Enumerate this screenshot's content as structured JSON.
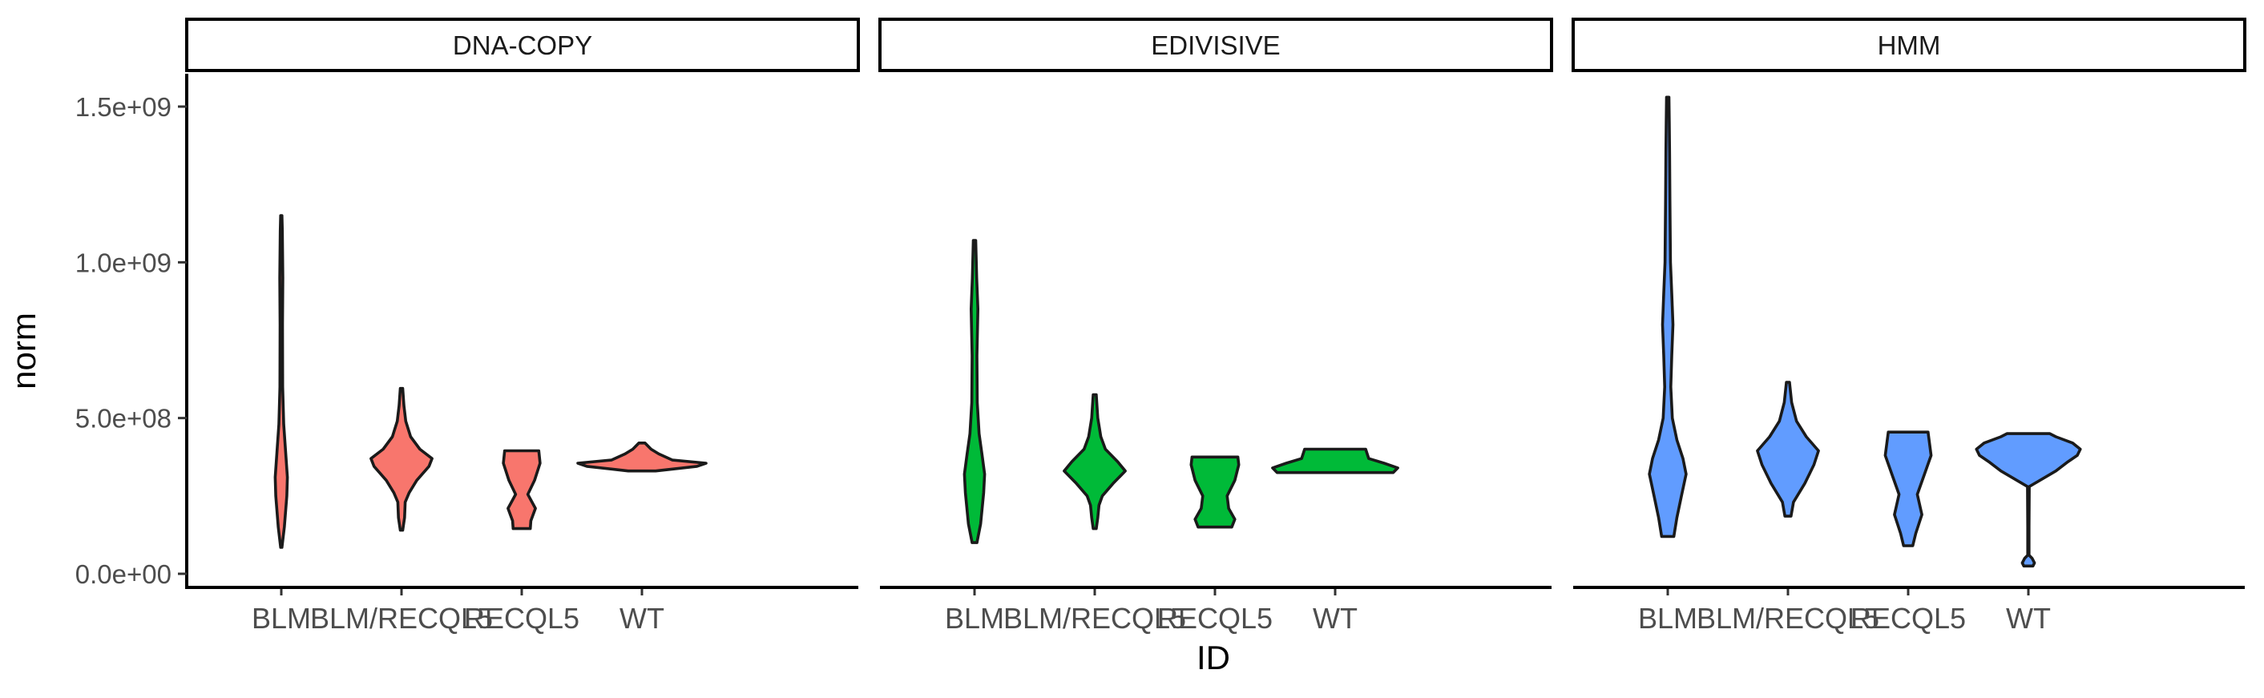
{
  "chart_data": {
    "type": "violin",
    "facets": [
      "DNA-COPY",
      "EDIVISIVE",
      "HMM"
    ],
    "categories": [
      "BLM",
      "BLM/RECQL5",
      "RECQL5",
      "WT"
    ],
    "xlabel": "ID",
    "ylabel": "norm",
    "ylim": [
      -50000000,
      1580000000
    ],
    "yticks": [
      0,
      500000000,
      1000000000,
      1500000000
    ],
    "ytick_labels": [
      "0.0e+00",
      "5.0e+08",
      "1.0e+09",
      "1.5e+09"
    ],
    "facet_colors": {
      "DNA-COPY": "#F8766D",
      "EDIVISIVE": "#00BA38",
      "HMM": "#619CFF"
    },
    "grid": false,
    "legend": "none",
    "violins": {
      "DNA-COPY": {
        "BLM": {
          "min": 85000000,
          "max": 1150000000,
          "profile": [
            [
              85000000,
              0.02
            ],
            [
              150000000,
              0.1
            ],
            [
              250000000,
              0.18
            ],
            [
              310000000,
              0.2
            ],
            [
              380000000,
              0.15
            ],
            [
              480000000,
              0.08
            ],
            [
              600000000,
              0.045
            ],
            [
              800000000,
              0.04
            ],
            [
              950000000,
              0.05
            ],
            [
              1100000000,
              0.035
            ],
            [
              1150000000,
              0.02
            ]
          ]
        },
        "BLM/RECQL5": {
          "min": 140000000,
          "max": 595000000,
          "profile": [
            [
              140000000,
              0.04
            ],
            [
              180000000,
              0.1
            ],
            [
              230000000,
              0.12
            ],
            [
              260000000,
              0.25
            ],
            [
              300000000,
              0.5
            ],
            [
              345000000,
              0.9
            ],
            [
              370000000,
              1.0
            ],
            [
              400000000,
              0.6
            ],
            [
              440000000,
              0.3
            ],
            [
              490000000,
              0.14
            ],
            [
              540000000,
              0.08
            ],
            [
              595000000,
              0.04
            ]
          ]
        },
        "RECQL5": {
          "min": 145000000,
          "max": 395000000,
          "profile": [
            [
              145000000,
              0.28
            ],
            [
              170000000,
              0.3
            ],
            [
              210000000,
              0.45
            ],
            [
              255000000,
              0.2
            ],
            [
              300000000,
              0.42
            ],
            [
              355000000,
              0.6
            ],
            [
              395000000,
              0.56
            ]
          ]
        },
        "WT": {
          "min": 330000000,
          "max": 420000000,
          "profile": [
            [
              330000000,
              0.45
            ],
            [
              345000000,
              1.8
            ],
            [
              355000000,
              2.1
            ],
            [
              365000000,
              1.0
            ],
            [
              385000000,
              0.55
            ],
            [
              400000000,
              0.3
            ],
            [
              420000000,
              0.1
            ]
          ]
        }
      },
      "EDIVISIVE": {
        "BLM": {
          "min": 100000000,
          "max": 1070000000,
          "profile": [
            [
              100000000,
              0.08
            ],
            [
              160000000,
              0.2
            ],
            [
              260000000,
              0.3
            ],
            [
              320000000,
              0.33
            ],
            [
              380000000,
              0.25
            ],
            [
              450000000,
              0.15
            ],
            [
              550000000,
              0.09
            ],
            [
              700000000,
              0.08
            ],
            [
              850000000,
              0.11
            ],
            [
              950000000,
              0.07
            ],
            [
              1070000000,
              0.04
            ]
          ]
        },
        "BLM/RECQL5": {
          "min": 145000000,
          "max": 575000000,
          "profile": [
            [
              145000000,
              0.05
            ],
            [
              180000000,
              0.1
            ],
            [
              220000000,
              0.14
            ],
            [
              250000000,
              0.25
            ],
            [
              290000000,
              0.6
            ],
            [
              330000000,
              1.0
            ],
            [
              360000000,
              0.75
            ],
            [
              400000000,
              0.35
            ],
            [
              440000000,
              0.2
            ],
            [
              500000000,
              0.1
            ],
            [
              575000000,
              0.05
            ]
          ]
        },
        "RECQL5": {
          "min": 150000000,
          "max": 375000000,
          "profile": [
            [
              150000000,
              0.55
            ],
            [
              175000000,
              0.65
            ],
            [
              210000000,
              0.45
            ],
            [
              250000000,
              0.4
            ],
            [
              300000000,
              0.65
            ],
            [
              350000000,
              0.78
            ],
            [
              375000000,
              0.75
            ]
          ]
        },
        "WT": {
          "min": 325000000,
          "max": 400000000,
          "profile": [
            [
              325000000,
              1.9
            ],
            [
              340000000,
              2.05
            ],
            [
              355000000,
              1.6
            ],
            [
              370000000,
              1.1
            ],
            [
              385000000,
              1.05
            ],
            [
              400000000,
              1.0
            ]
          ]
        }
      },
      "HMM": {
        "BLM": {
          "min": 120000000,
          "max": 1530000000,
          "profile": [
            [
              120000000,
              0.2
            ],
            [
              180000000,
              0.3
            ],
            [
              250000000,
              0.45
            ],
            [
              320000000,
              0.6
            ],
            [
              370000000,
              0.5
            ],
            [
              430000000,
              0.3
            ],
            [
              500000000,
              0.15
            ],
            [
              600000000,
              0.1
            ],
            [
              700000000,
              0.13
            ],
            [
              800000000,
              0.17
            ],
            [
              900000000,
              0.13
            ],
            [
              1000000000,
              0.09
            ],
            [
              1200000000,
              0.07
            ],
            [
              1350000000,
              0.06
            ],
            [
              1450000000,
              0.05
            ],
            [
              1530000000,
              0.04
            ]
          ]
        },
        "BLM/RECQL5": {
          "min": 185000000,
          "max": 615000000,
          "profile": [
            [
              185000000,
              0.1
            ],
            [
              230000000,
              0.18
            ],
            [
              290000000,
              0.55
            ],
            [
              350000000,
              0.85
            ],
            [
              395000000,
              1.0
            ],
            [
              440000000,
              0.6
            ],
            [
              490000000,
              0.28
            ],
            [
              550000000,
              0.12
            ],
            [
              615000000,
              0.05
            ]
          ]
        },
        "RECQL5": {
          "min": 90000000,
          "max": 455000000,
          "profile": [
            [
              90000000,
              0.15
            ],
            [
              130000000,
              0.25
            ],
            [
              190000000,
              0.45
            ],
            [
              255000000,
              0.3
            ],
            [
              310000000,
              0.5
            ],
            [
              380000000,
              0.75
            ],
            [
              455000000,
              0.65
            ]
          ]
        },
        "WT": {
          "min": 25000000,
          "max": 450000000,
          "profile": [
            [
              25000000,
              0.15
            ],
            [
              35000000,
              0.2
            ],
            [
              50000000,
              0.12
            ],
            [
              60000000,
              0.02
            ],
            [
              150000000,
              0.02
            ],
            [
              280000000,
              0.03
            ],
            [
              330000000,
              0.9
            ],
            [
              360000000,
              1.3
            ],
            [
              380000000,
              1.6
            ],
            [
              400000000,
              1.7
            ],
            [
              420000000,
              1.45
            ],
            [
              440000000,
              0.9
            ],
            [
              450000000,
              0.7
            ]
          ]
        }
      }
    }
  }
}
